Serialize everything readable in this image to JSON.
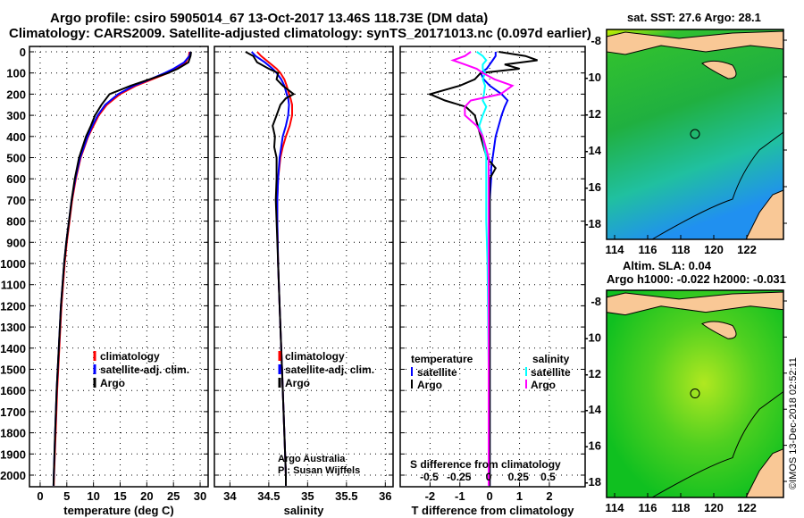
{
  "title": {
    "line1": "Argo profile: csiro 5905014_67 13-Oct-2017 13.46S 118.73E (DM data)",
    "line2": "Climatology: CARS2009. Satellite-adjusted climatology: synTS_20171013.nc (0.097d earlier)"
  },
  "credits": {
    "line1": "Argo Australia",
    "line2": "PI: Susan Wijffels",
    "stamp": "©IMOS 13-Dec-2018 02:52:11"
  },
  "colors": {
    "climatology": "#ff0000",
    "satellite": "#0000ff",
    "argo": "#000000",
    "sal_satellite": "#00ffff",
    "sal_argo": "#ff00ff",
    "land": "#f9c896"
  },
  "chart_data": [
    {
      "type": "line",
      "id": "temperature",
      "xlabel": "temperature (deg C)",
      "ylabel": "depth",
      "xlim": [
        -2,
        31.5
      ],
      "ylim": [
        2055,
        0
      ],
      "xticks": [
        0,
        5,
        10,
        15,
        20,
        25,
        30
      ],
      "yticks": [
        0,
        100,
        200,
        300,
        400,
        500,
        600,
        700,
        800,
        900,
        1000,
        1100,
        1200,
        1300,
        1400,
        1500,
        1600,
        1700,
        1800,
        1900,
        2000
      ],
      "ytick_labels": [
        "0",
        "100",
        "200",
        "300",
        "400",
        "500",
        "600",
        "700",
        "800",
        "900",
        "1000",
        "1100",
        "1200",
        "1300",
        "1400",
        "1500",
        "1600",
        "1700",
        "1800",
        "1900",
        "2000"
      ],
      "legend": [
        "climatology",
        "satellite-adj. clim.",
        "Argo"
      ],
      "depth": [
        0,
        20,
        50,
        80,
        100,
        130,
        160,
        200,
        250,
        300,
        350,
        400,
        500,
        600,
        700,
        800,
        900,
        1000,
        1200,
        1400,
        1600,
        1800,
        2000,
        2050
      ],
      "series": [
        {
          "name": "climatology",
          "color": "#ff0000",
          "values": [
            28.0,
            27.9,
            27.3,
            25.5,
            24.0,
            21.0,
            18.0,
            15.0,
            12.5,
            11.0,
            10.0,
            9.0,
            7.6,
            6.7,
            6.0,
            5.5,
            5.0,
            4.6,
            4.0,
            3.6,
            3.2,
            2.9,
            2.6,
            2.55
          ]
        },
        {
          "name": "satellite-adj. clim.",
          "color": "#0000ff",
          "values": [
            28.2,
            28.0,
            27.0,
            25.0,
            23.4,
            20.6,
            17.6,
            14.6,
            12.2,
            10.8,
            9.8,
            8.9,
            7.5,
            6.6,
            5.9,
            5.4,
            4.9,
            4.5,
            3.9,
            3.5,
            3.1,
            2.8,
            2.55,
            2.5
          ]
        },
        {
          "name": "Argo",
          "color": "#000000",
          "values": [
            28.3,
            28.2,
            27.8,
            25.8,
            24.0,
            20.5,
            17.0,
            13.0,
            11.5,
            10.3,
            9.5,
            8.6,
            7.3,
            6.5,
            5.9,
            5.4,
            4.9,
            4.5,
            3.9,
            3.5,
            3.1,
            2.8,
            2.55,
            2.5
          ]
        }
      ]
    },
    {
      "type": "line",
      "id": "salinity",
      "xlabel": "salinity",
      "ylabel": "depth",
      "xlim": [
        33.8,
        36.1
      ],
      "ylim": [
        2055,
        0
      ],
      "xticks": [
        34,
        34.5,
        35,
        35.5,
        36
      ],
      "xtick_labels": [
        "34",
        "34.5",
        "35",
        "35.5",
        "36"
      ],
      "legend": [
        "climatology",
        "satellite-adj. clim.",
        "Argo"
      ],
      "depth": [
        0,
        20,
        50,
        80,
        100,
        130,
        160,
        200,
        220,
        250,
        300,
        350,
        400,
        450,
        500,
        600,
        700,
        800,
        1000,
        1200,
        1500,
        1800,
        2000,
        2050
      ],
      "series": [
        {
          "name": "climatology",
          "color": "#ff0000",
          "values": [
            34.35,
            34.4,
            34.5,
            34.6,
            34.65,
            34.7,
            34.73,
            34.76,
            34.78,
            34.8,
            34.8,
            34.77,
            34.72,
            34.68,
            34.65,
            34.62,
            34.61,
            34.61,
            34.62,
            34.64,
            34.67,
            34.7,
            34.72,
            34.72
          ]
        },
        {
          "name": "satellite-adj. clim.",
          "color": "#0000ff",
          "values": [
            34.28,
            34.33,
            34.45,
            34.55,
            34.6,
            34.66,
            34.7,
            34.73,
            34.75,
            34.76,
            34.75,
            34.72,
            34.68,
            34.66,
            34.64,
            34.62,
            34.61,
            34.61,
            34.62,
            34.64,
            34.67,
            34.7,
            34.72,
            34.72
          ]
        },
        {
          "name": "Argo",
          "color": "#000000",
          "values": [
            34.2,
            34.3,
            34.35,
            34.5,
            34.62,
            34.6,
            34.68,
            34.82,
            34.72,
            34.65,
            34.6,
            34.55,
            34.58,
            34.57,
            34.6,
            34.6,
            34.59,
            34.6,
            34.62,
            34.64,
            34.67,
            34.7,
            34.72,
            34.72
          ]
        }
      ]
    },
    {
      "type": "line",
      "id": "differences",
      "xlabel": "T difference from climatology",
      "x2label": "S difference from climatology",
      "xlim": [
        -3,
        3.2
      ],
      "ylim": [
        2055,
        0
      ],
      "xticks": [
        -2,
        -1,
        0,
        1,
        2
      ],
      "xtick_labels": [
        "-2",
        "-1",
        "0",
        "1",
        "2"
      ],
      "x2ticks": [
        -0.5,
        -0.25,
        0,
        0.25,
        0.5
      ],
      "x2tick_labels": [
        "-0.5",
        "-0.25",
        "0",
        "0.25",
        "0.5"
      ],
      "legend_temperature": {
        "title": "temperature",
        "items": [
          "satellite",
          "Argo"
        ]
      },
      "legend_salinity": {
        "title": "salinity",
        "items": [
          "satellite",
          "Argo"
        ]
      },
      "depth": [
        0,
        20,
        40,
        60,
        80,
        100,
        130,
        160,
        200,
        230,
        260,
        300,
        350,
        400,
        500,
        550,
        600,
        700,
        800,
        1000,
        1500,
        2000,
        2050
      ],
      "series": [
        {
          "name": "T satellite",
          "color": "#0000ff",
          "values": [
            0.2,
            0.2,
            0.1,
            0.0,
            -0.1,
            -0.3,
            -0.2,
            0.0,
            0.4,
            0.6,
            0.5,
            0.4,
            0.3,
            0.2,
            0.1,
            0.05,
            0.05,
            0.0,
            0.0,
            0.0,
            0.0,
            0.0,
            0.0
          ]
        },
        {
          "name": "T Argo",
          "color": "#000000",
          "values": [
            0.3,
            1.2,
            1.6,
            0.5,
            1.0,
            -0.3,
            -0.5,
            -1.0,
            -2.0,
            -1.5,
            -0.8,
            -0.5,
            -0.4,
            -0.3,
            -0.1,
            0.2,
            0.0,
            0.0,
            0.0,
            0.0,
            0.0,
            0.0,
            0.0
          ]
        },
        {
          "name": "S satellite",
          "color": "#00ffff",
          "values": [
            -0.1,
            -0.05,
            -0.02,
            -0.05,
            -0.05,
            -0.03,
            -0.05,
            -0.03,
            -0.04,
            -0.05,
            -0.02,
            -0.05,
            -0.08,
            -0.05,
            -0.02,
            -0.02,
            -0.02,
            -0.02,
            -0.02,
            -0.01,
            0.0,
            0.0,
            0.0
          ]
        },
        {
          "name": "S Argo",
          "color": "#ff00ff",
          "values": [
            -0.15,
            -0.2,
            -0.3,
            -0.2,
            -0.1,
            -0.05,
            0.05,
            0.2,
            0.1,
            -0.15,
            -0.2,
            -0.2,
            -0.1,
            -0.05,
            0.0,
            0.0,
            0.0,
            0.0,
            0.0,
            0.0,
            0.0,
            0.0,
            0.0
          ]
        }
      ]
    }
  ],
  "maps": [
    {
      "title": "sat. SST: 27.6 Argo: 28.1",
      "lon_ticks": [
        "114",
        "116",
        "118",
        "120",
        "122"
      ],
      "lat_ticks": [
        "-8",
        "-10",
        "-12",
        "-14",
        "-16",
        "-18"
      ]
    },
    {
      "title1": "Altim. SLA: 0.04",
      "title2": "Argo h1000: -0.022 h2000: -0.031",
      "lon_ticks": [
        "114",
        "116",
        "118",
        "120",
        "122"
      ],
      "lat_ticks": [
        "-8",
        "-10",
        "-12",
        "-14",
        "-16",
        "-18"
      ]
    }
  ]
}
